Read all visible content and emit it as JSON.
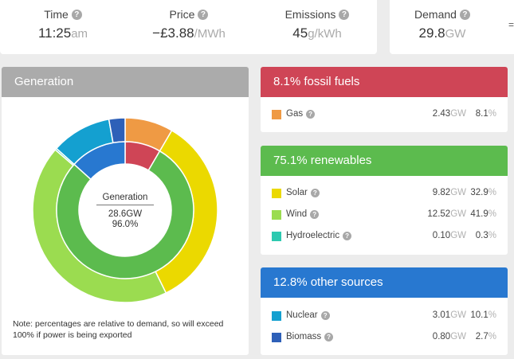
{
  "stats": [
    {
      "label": "Time",
      "value": "11:25",
      "unit": "am"
    },
    {
      "label": "Price",
      "value": "−£3.88",
      "unit": "/MWh"
    },
    {
      "label": "Emissions",
      "value": "45",
      "unit": "g/kWh"
    },
    {
      "label": "Demand",
      "value": "29.8",
      "unit": "GW"
    }
  ],
  "help_glyph": "?",
  "edge_glyph": "=",
  "generation": {
    "title": "Generation",
    "center_label": "Generation",
    "center_total": "28.6GW",
    "center_pct": "96.0%",
    "note": "Note: percentages are relative to demand, so will exceed 100% if power is being exported"
  },
  "chart_data": {
    "type": "pie",
    "outer": [
      {
        "name": "Gas",
        "percent": 8.1,
        "color": "#ef9a44"
      },
      {
        "name": "Solar",
        "percent": 32.9,
        "color": "#ebd900"
      },
      {
        "name": "Wind",
        "percent": 41.9,
        "color": "#9bdc50"
      },
      {
        "name": "Hydroelectric",
        "percent": 0.3,
        "color": "#2dc9b0"
      },
      {
        "name": "Nuclear",
        "percent": 10.1,
        "color": "#14a0d0"
      },
      {
        "name": "Biomass",
        "percent": 2.7,
        "color": "#2e60b8"
      }
    ],
    "inner": [
      {
        "name": "fossil fuels",
        "percent": 8.1,
        "color": "#cf4556"
      },
      {
        "name": "renewables",
        "percent": 75.1,
        "color": "#5cbb4e"
      },
      {
        "name": "other sources",
        "percent": 12.8,
        "color": "#2878d0"
      }
    ]
  },
  "groups": [
    {
      "title": "8.1% fossil fuels",
      "color": "#cf4556",
      "items": [
        {
          "name": "Gas",
          "gw": "2.43",
          "pct": "8.1",
          "color": "#ef9a44"
        }
      ]
    },
    {
      "title": "75.1% renewables",
      "color": "#5cbb4e",
      "items": [
        {
          "name": "Solar",
          "gw": "9.82",
          "pct": "32.9",
          "color": "#ebd900"
        },
        {
          "name": "Wind",
          "gw": "12.52",
          "pct": "41.9",
          "color": "#9bdc50"
        },
        {
          "name": "Hydroelectric",
          "gw": "0.10",
          "pct": "0.3",
          "color": "#2dc9b0"
        }
      ]
    },
    {
      "title": "12.8% other sources",
      "color": "#2878d0",
      "items": [
        {
          "name": "Nuclear",
          "gw": "3.01",
          "pct": "10.1",
          "color": "#14a0d0"
        },
        {
          "name": "Biomass",
          "gw": "0.80",
          "pct": "2.7",
          "color": "#2e60b8"
        }
      ]
    }
  ],
  "units": {
    "gw": "GW",
    "pct": "%"
  },
  "colors": {
    "generation_header": "#ababab",
    "page_bg": "#ececec"
  }
}
